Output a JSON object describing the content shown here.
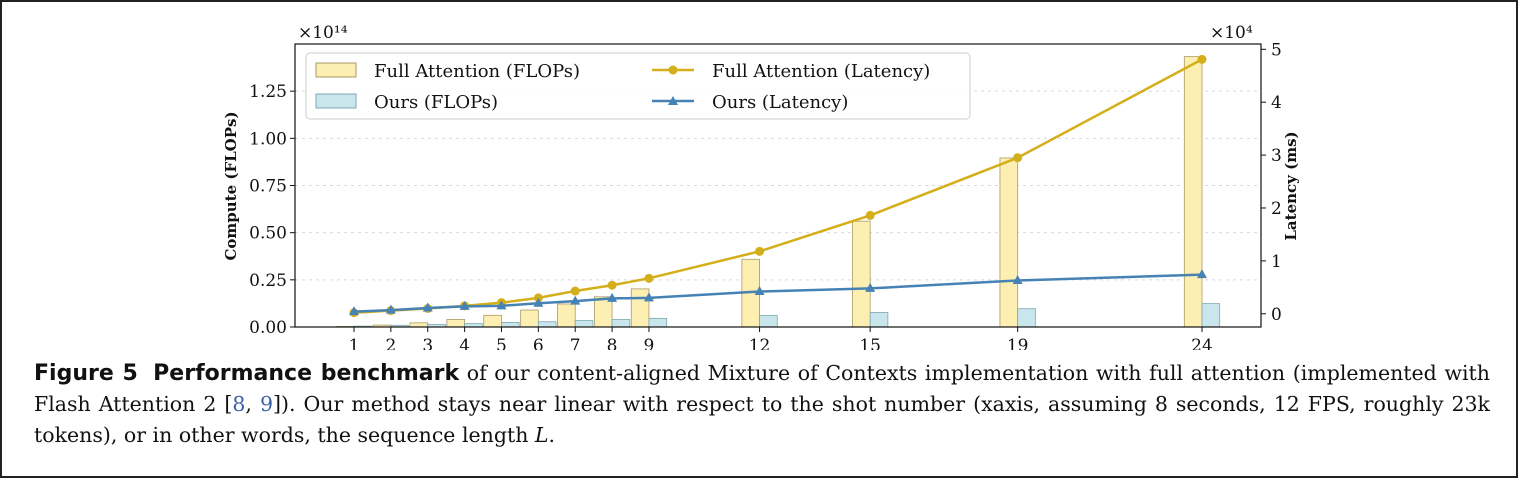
{
  "caption": {
    "figure_label": "Figure 5",
    "title": "Performance benchmark",
    "text_part1": " of our content-aligned Mixture of Contexts implementation with full attention (implemented with Flash Attention 2 [",
    "ref1": "8",
    "sep": ", ",
    "ref2": "9",
    "text_part2": "]). Our method stays near linear with respect to the shot number (xaxis, assuming 8 seconds, 12 FPS, roughly 23k tokens), or in other words, the sequence length ",
    "math_symbol": "L",
    "text_end": "."
  },
  "chart_data": {
    "type": "bar",
    "x": [
      1,
      2,
      3,
      4,
      5,
      6,
      7,
      8,
      9,
      12,
      15,
      19,
      24
    ],
    "xlim": [
      -0.6,
      25.6
    ],
    "left_axis": {
      "label": "Compute (FLOPs)",
      "scale_label": "×10¹⁴",
      "ylim": [
        0,
        1.5
      ],
      "ticks": [
        0.0,
        0.25,
        0.5,
        0.75,
        1.0,
        1.25
      ],
      "tick_labels": [
        "0.00",
        "0.25",
        "0.50",
        "0.75",
        "1.00",
        "1.25"
      ]
    },
    "right_axis": {
      "label": "Latency (ms)",
      "scale_label": "×10⁴",
      "ylim": [
        -0.25,
        5.1
      ],
      "ticks": [
        0,
        1,
        2,
        3,
        4,
        5
      ],
      "tick_labels": [
        "0",
        "1",
        "2",
        "3",
        "4",
        "5"
      ]
    },
    "bar_series": [
      {
        "name": "Full Attention (FLOPs)",
        "color": "#fdefb2",
        "edge": "#a89a66",
        "values": [
          0.003,
          0.01,
          0.022,
          0.04,
          0.062,
          0.09,
          0.122,
          0.16,
          0.202,
          0.359,
          0.561,
          0.896,
          1.433
        ]
      },
      {
        "name": "Ours (FLOPs)",
        "color": "#c8e6ec",
        "edge": "#7fa7b0",
        "values": [
          0.0045,
          0.009,
          0.014,
          0.018,
          0.024,
          0.028,
          0.034,
          0.04,
          0.046,
          0.061,
          0.077,
          0.097,
          0.124
        ]
      }
    ],
    "line_series": [
      {
        "name": "Full Attention (Latency)",
        "color": "#d4af19",
        "marker": "circle",
        "values": [
          0.02,
          0.06,
          0.1,
          0.15,
          0.21,
          0.3,
          0.43,
          0.54,
          0.67,
          1.18,
          1.86,
          2.95,
          4.81
        ]
      },
      {
        "name": "Ours (Latency)",
        "color": "#4682b4",
        "marker": "triangle",
        "values": [
          0.04,
          0.07,
          0.11,
          0.14,
          0.15,
          0.2,
          0.24,
          0.29,
          0.3,
          0.42,
          0.48,
          0.63,
          0.74
        ]
      }
    ],
    "grid": "y-dashed",
    "legend": "top-left, 2 columns"
  }
}
